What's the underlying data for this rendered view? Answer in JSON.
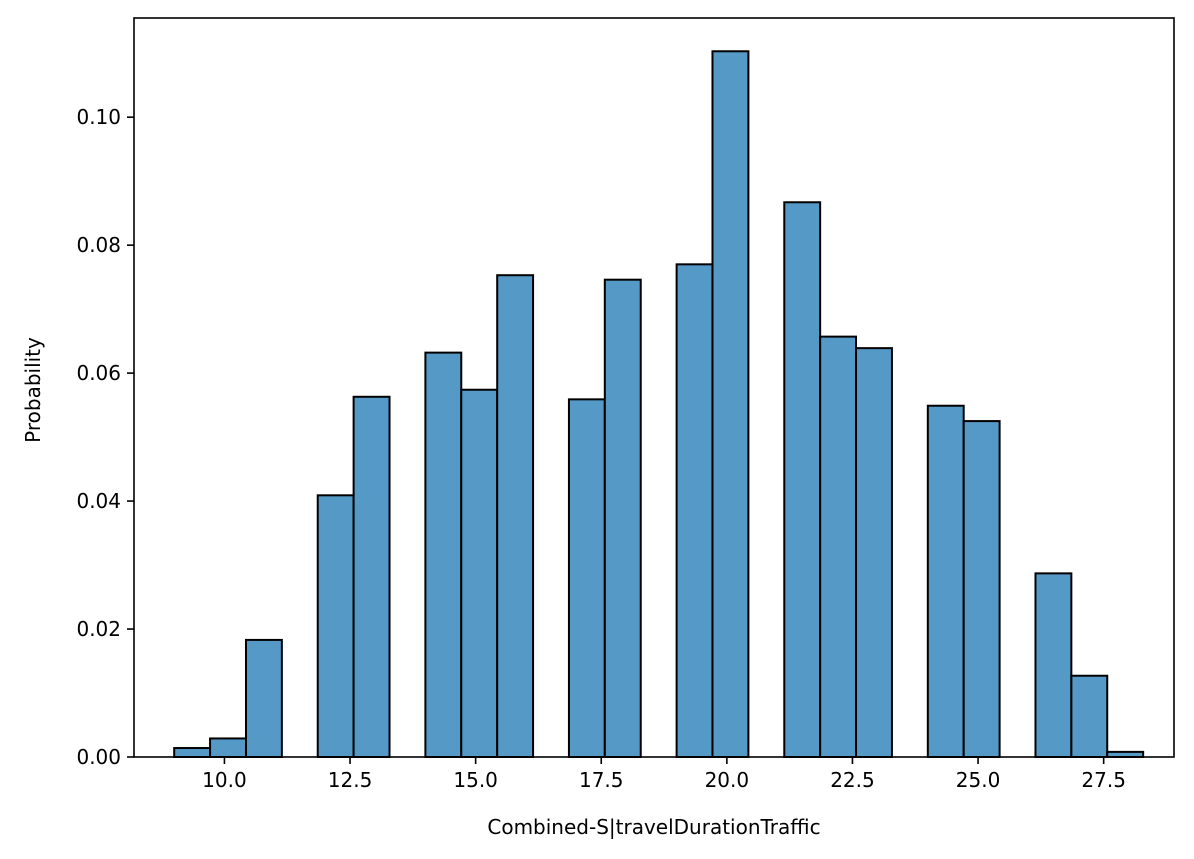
{
  "chart_data": {
    "type": "bar",
    "xlabel": "Combined-S|travelDurationTraffic",
    "ylabel": "Probability",
    "xlim": [
      8.2,
      28.9
    ],
    "ylim": [
      0.0,
      0.1155
    ],
    "x_ticks": [
      {
        "value": 10.0,
        "label": "10.0"
      },
      {
        "value": 12.5,
        "label": "12.5"
      },
      {
        "value": 15.0,
        "label": "15.0"
      },
      {
        "value": 17.5,
        "label": "17.5"
      },
      {
        "value": 20.0,
        "label": "20.0"
      },
      {
        "value": 22.5,
        "label": "22.5"
      },
      {
        "value": 25.0,
        "label": "25.0"
      },
      {
        "value": 27.5,
        "label": "27.5"
      }
    ],
    "y_ticks": [
      {
        "value": 0.0,
        "label": "0.00"
      },
      {
        "value": 0.02,
        "label": "0.02"
      },
      {
        "value": 0.04,
        "label": "0.04"
      },
      {
        "value": 0.06,
        "label": "0.06"
      },
      {
        "value": 0.08,
        "label": "0.08"
      },
      {
        "value": 0.1,
        "label": "0.10"
      }
    ],
    "bin_edges": [
      9.0,
      9.714,
      10.429,
      11.143,
      11.857,
      12.571,
      13.286,
      14.0,
      14.714,
      15.429,
      16.143,
      16.857,
      17.571,
      18.286,
      19.0,
      19.714,
      20.429,
      21.143,
      21.857,
      22.571,
      23.286,
      24.0,
      24.714,
      25.429,
      26.143,
      26.857,
      27.571,
      28.286
    ],
    "values": [
      0.0014,
      0.0029,
      0.0183,
      0.0,
      0.0409,
      0.0563,
      0.0,
      0.0632,
      0.0574,
      0.0753,
      0.0,
      0.0559,
      0.0746,
      0.0,
      0.077,
      0.1103,
      0.0,
      0.0867,
      0.0657,
      0.0639,
      0.0,
      0.0549,
      0.0525,
      0.0,
      0.0287,
      0.0127,
      0.0008
    ],
    "grid": false,
    "colors": {
      "bar_fill": "#5599c7",
      "bar_edge": "#000000",
      "axis": "#000000",
      "background": "#ffffff"
    }
  }
}
